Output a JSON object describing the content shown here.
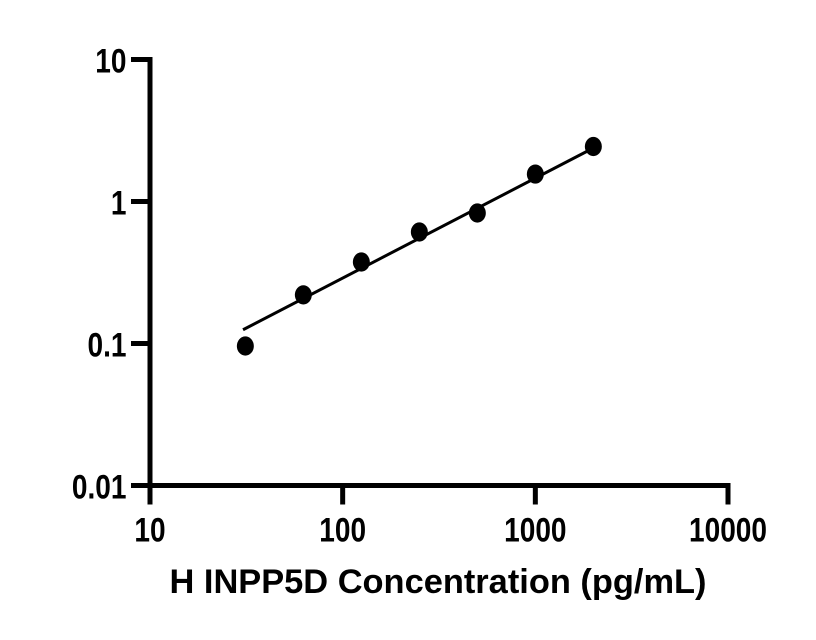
{
  "figure": {
    "background_color": "#ffffff",
    "foreground_color": "#000000"
  },
  "chart_data": {
    "type": "scatter",
    "title": "",
    "xlabel": "H INPP5D Concentration (pg/mL)",
    "ylabel": "",
    "x_scale": "log",
    "y_scale": "log",
    "xlim": [
      10,
      10000
    ],
    "ylim": [
      0.01,
      10
    ],
    "x_tick_labels": [
      "10",
      "100",
      "1000",
      "10000"
    ],
    "y_tick_labels": [
      "10",
      "1",
      "0.1",
      "0.01"
    ],
    "grid": false,
    "legend": false,
    "marker_color": "#000000",
    "line_color": "#000000",
    "axis_color": "#000000",
    "series": [
      {
        "name": "standard-curve-points",
        "kind": "scatter",
        "marker": "filled-circle",
        "points": [
          {
            "x": 31.25,
            "y": 0.096
          },
          {
            "x": 62.5,
            "y": 0.22
          },
          {
            "x": 125,
            "y": 0.375
          },
          {
            "x": 250,
            "y": 0.61
          },
          {
            "x": 500,
            "y": 0.83
          },
          {
            "x": 1000,
            "y": 1.56
          },
          {
            "x": 2000,
            "y": 2.44
          }
        ]
      },
      {
        "name": "linear-fit-line",
        "kind": "line",
        "points": [
          {
            "x": 30.4,
            "y": 0.125
          },
          {
            "x": 2013,
            "y": 2.39
          }
        ]
      }
    ]
  }
}
